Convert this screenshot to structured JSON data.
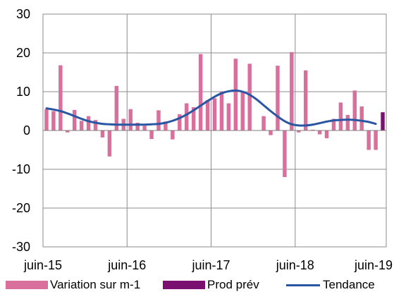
{
  "colors": {
    "variation": "#d86f9c",
    "prod_prev": "#7a1170",
    "tendance": "#2856a3"
  },
  "chart_data": {
    "type": "bar",
    "ylim": [
      -30,
      30
    ],
    "y_ticks": [
      "30",
      "20",
      "10",
      "0",
      "-10",
      "-20",
      "-30"
    ],
    "x_ticks": [
      "juin-15",
      "juin-16",
      "juin-17",
      "juin-18",
      "juin-19"
    ],
    "legend": [
      "Variation sur m-1",
      "Prod prév",
      "Tendance"
    ],
    "grid": true,
    "series": [
      {
        "name": "Variation sur m-1",
        "type": "bar",
        "values": [
          5.5,
          5.0,
          16.8,
          -0.5,
          5.3,
          2.5,
          3.7,
          2.7,
          -1.8,
          -6.7,
          11.5,
          3.0,
          5.5,
          2.0,
          1.2,
          -2.2,
          5.2,
          2.3,
          -2.3,
          4.2,
          7.0,
          6.0,
          19.7,
          7.8,
          8.3,
          10.0,
          7.0,
          18.5,
          10.0,
          17.2,
          0.0,
          3.7,
          -1.2,
          16.7,
          -12.0,
          20.2,
          -0.5,
          15.5,
          0.2,
          -1.0,
          -2.0,
          3.0,
          7.2,
          4.0,
          10.3,
          6.2,
          -5.0,
          -5.0
        ]
      },
      {
        "name": "Prod prév",
        "type": "bar",
        "values": [
          4.7
        ]
      },
      {
        "name": "Tendance",
        "type": "line",
        "values": [
          5.7,
          5.4,
          5.0,
          4.4,
          3.7,
          3.0,
          2.4,
          2.0,
          1.7,
          1.6,
          1.5,
          1.5,
          1.5,
          1.5,
          1.5,
          1.6,
          1.7,
          2.0,
          2.5,
          3.2,
          4.1,
          5.2,
          6.4,
          7.6,
          8.7,
          9.6,
          10.1,
          10.3,
          10.0,
          9.2,
          8.0,
          6.5,
          5.0,
          3.6,
          2.4,
          1.6,
          1.3,
          1.3,
          1.5,
          1.9,
          2.3,
          2.6,
          2.7,
          2.8,
          2.7,
          2.5,
          2.2,
          1.7
        ]
      }
    ]
  }
}
